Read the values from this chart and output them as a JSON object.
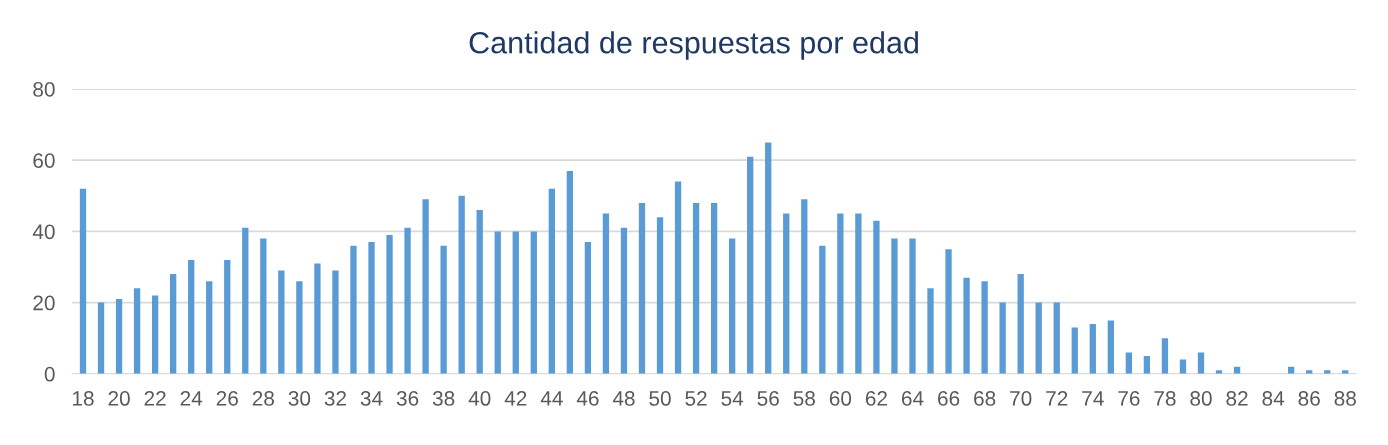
{
  "chart_data": {
    "type": "bar",
    "title": "Cantidad de respuestas por edad",
    "categories": [
      "18",
      null,
      "20",
      null,
      "22",
      null,
      "24",
      null,
      "26",
      null,
      "28",
      null,
      "30",
      null,
      "32",
      null,
      "34",
      null,
      "36",
      null,
      "38",
      null,
      "40",
      null,
      "42",
      null,
      "44",
      null,
      "46",
      null,
      "48",
      null,
      "50",
      null,
      "52",
      null,
      "54",
      null,
      "56",
      null,
      "58",
      null,
      "60",
      null,
      "62",
      null,
      "64",
      null,
      "66",
      null,
      "68",
      null,
      "70",
      null,
      "72",
      null,
      "74",
      null,
      "76",
      null,
      "78",
      null,
      "80",
      null,
      "82",
      null,
      "84",
      null,
      "86",
      null,
      "88"
    ],
    "values": [
      52,
      20,
      21,
      24,
      22,
      28,
      32,
      26,
      32,
      41,
      38,
      29,
      26,
      31,
      29,
      36,
      37,
      39,
      41,
      49,
      36,
      50,
      46,
      40,
      40,
      40,
      52,
      57,
      37,
      45,
      41,
      48,
      44,
      54,
      48,
      48,
      38,
      61,
      65,
      45,
      49,
      36,
      45,
      45,
      43,
      38,
      38,
      24,
      35,
      27,
      26,
      20,
      28,
      20,
      20,
      13,
      14,
      15,
      6,
      5,
      10,
      4,
      6,
      1,
      2,
      0,
      0,
      2,
      1,
      1,
      1
    ],
    "color": "#5b9bd5",
    "ylim": [
      0,
      80
    ],
    "yticks": [
      0,
      20,
      40,
      60,
      80
    ],
    "grid": "y",
    "legend": false
  }
}
